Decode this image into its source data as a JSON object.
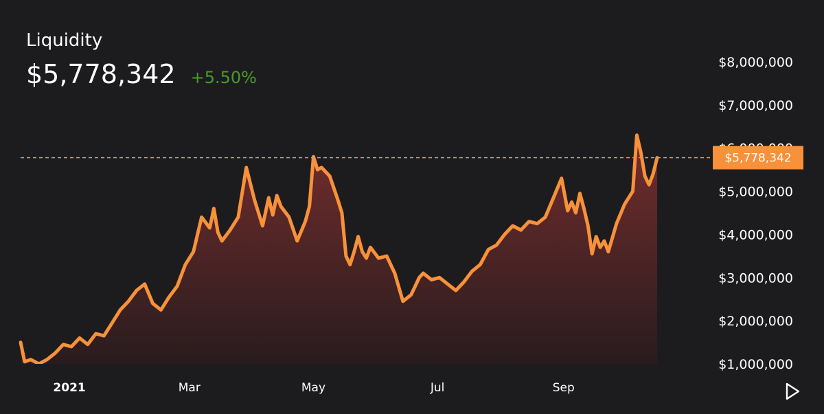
{
  "header": {
    "title": "Liquidity",
    "current_value": "$5,778,342",
    "change": "+5.50%"
  },
  "colors": {
    "background": "#1c1c1e",
    "line": "#f7913a",
    "fill_top": "#7a2e2e",
    "fill_bottom": "#2a1c1e",
    "change_positive": "#4c9a2a",
    "label_badge": "#f7913a"
  },
  "controls": {
    "play_icon": "play-icon"
  },
  "chart_data": {
    "type": "area",
    "title": "Liquidity",
    "xlabel": "",
    "ylabel": "",
    "x_tick_labels": [
      "2021",
      "Mar",
      "May",
      "Jul",
      "Sep"
    ],
    "x_tick_dates": [
      "2021-01-01",
      "2021-03-01",
      "2021-05-01",
      "2021-07-01",
      "2021-09-01"
    ],
    "y_tick_labels": [
      "$1,000,000",
      "$2,000,000",
      "$3,000,000",
      "$4,000,000",
      "$5,000,000",
      "$6,000,000",
      "$7,000,000",
      "$8,000,000"
    ],
    "ylim": [
      1000000,
      8000000
    ],
    "xlim": [
      "2020-12-07",
      "2021-10-23"
    ],
    "current_label": "$5,778,342",
    "current_value": 5778342,
    "grid": false,
    "legend": "none",
    "series": [
      {
        "x": [
          "2020-12-08",
          "2020-12-10",
          "2020-12-13",
          "2020-12-17",
          "2020-12-21",
          "2020-12-25",
          "2020-12-29",
          "2021-01-02",
          "2021-01-06",
          "2021-01-10",
          "2021-01-14",
          "2021-01-18",
          "2021-01-22",
          "2021-01-26",
          "2021-01-30",
          "2021-02-03",
          "2021-02-07",
          "2021-02-11",
          "2021-02-15",
          "2021-02-19",
          "2021-02-23",
          "2021-02-27",
          "2021-03-03",
          "2021-03-07",
          "2021-03-11",
          "2021-03-13",
          "2021-03-15",
          "2021-03-17",
          "2021-03-21",
          "2021-03-25",
          "2021-03-29",
          "2021-04-02",
          "2021-04-06",
          "2021-04-09",
          "2021-04-11",
          "2021-04-13",
          "2021-04-15",
          "2021-04-19",
          "2021-04-23",
          "2021-04-27",
          "2021-04-29",
          "2021-05-01",
          "2021-05-03",
          "2021-05-05",
          "2021-05-09",
          "2021-05-13",
          "2021-05-15",
          "2021-05-17",
          "2021-05-19",
          "2021-05-21",
          "2021-05-23",
          "2021-05-25",
          "2021-05-27",
          "2021-05-29",
          "2021-06-02",
          "2021-06-06",
          "2021-06-10",
          "2021-06-14",
          "2021-06-18",
          "2021-06-20",
          "2021-06-22",
          "2021-06-24",
          "2021-06-28",
          "2021-07-02",
          "2021-07-06",
          "2021-07-10",
          "2021-07-14",
          "2021-07-18",
          "2021-07-22",
          "2021-07-26",
          "2021-07-30",
          "2021-08-03",
          "2021-08-07",
          "2021-08-11",
          "2021-08-15",
          "2021-08-19",
          "2021-08-23",
          "2021-08-27",
          "2021-08-31",
          "2021-09-03",
          "2021-09-05",
          "2021-09-07",
          "2021-09-09",
          "2021-09-11",
          "2021-09-13",
          "2021-09-15",
          "2021-09-17",
          "2021-09-19",
          "2021-09-21",
          "2021-09-23",
          "2021-09-27",
          "2021-10-01",
          "2021-10-05",
          "2021-10-07",
          "2021-10-09",
          "2021-10-11",
          "2021-10-13",
          "2021-10-15",
          "2021-10-17"
        ],
        "y": [
          1500000,
          1050000,
          1100000,
          1000000,
          1100000,
          1250000,
          1450000,
          1400000,
          1600000,
          1450000,
          1700000,
          1650000,
          1950000,
          2250000,
          2450000,
          2700000,
          2850000,
          2400000,
          2250000,
          2550000,
          2800000,
          3300000,
          3600000,
          4400000,
          4150000,
          4600000,
          4050000,
          3850000,
          4100000,
          4400000,
          5550000,
          4800000,
          4200000,
          4850000,
          4450000,
          4900000,
          4650000,
          4400000,
          3850000,
          4300000,
          4650000,
          5800000,
          5500000,
          5550000,
          5350000,
          4800000,
          4500000,
          3500000,
          3300000,
          3600000,
          3950000,
          3600000,
          3450000,
          3700000,
          3450000,
          3500000,
          3100000,
          2450000,
          2600000,
          2800000,
          3000000,
          3100000,
          2950000,
          3000000,
          2850000,
          2700000,
          2900000,
          3150000,
          3300000,
          3650000,
          3750000,
          4000000,
          4200000,
          4100000,
          4300000,
          4250000,
          4400000,
          4850000,
          5300000,
          4550000,
          4750000,
          4500000,
          4950000,
          4600000,
          4200000,
          3550000,
          3950000,
          3700000,
          3850000,
          3600000,
          4250000,
          4700000,
          5000000,
          6300000,
          5900000,
          5350000,
          5150000,
          5400000,
          5778342
        ]
      }
    ]
  }
}
